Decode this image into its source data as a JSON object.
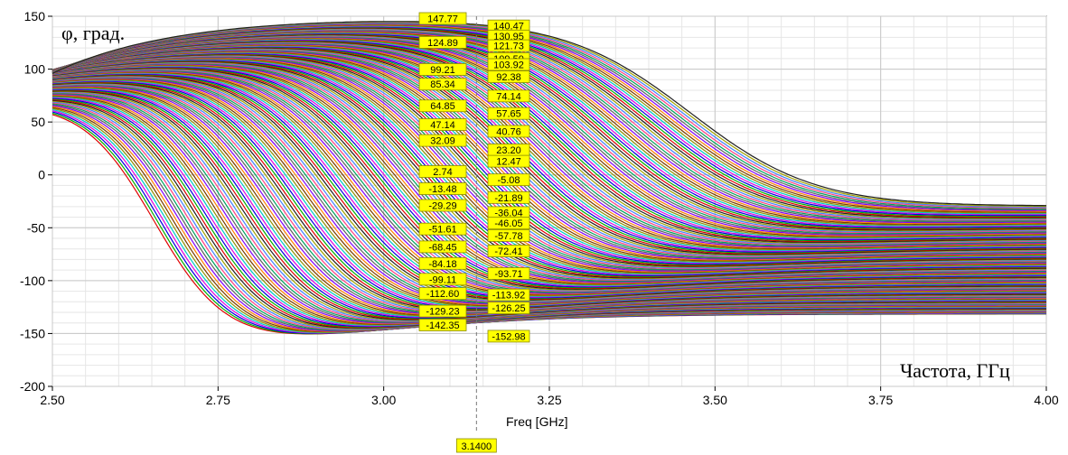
{
  "chart_data": {
    "type": "line",
    "ylabel": "φ, град.",
    "xlabel_top": "Частота, ГГц",
    "xlabel": "Freq [GHz]",
    "xlim": [
      2.5,
      4.0
    ],
    "ylim": [
      -200,
      150
    ],
    "x_ticks": [
      "2.50",
      "2.75",
      "3.00",
      "3.25",
      "3.50",
      "3.75",
      "4.00"
    ],
    "y_ticks": [
      "150",
      "100",
      "50",
      "0",
      "-50",
      "-100",
      "-150",
      "-200"
    ],
    "grid": true,
    "marker_x": "3.1400",
    "series_count": 180,
    "marker_values_left": [
      "147.77",
      "124.89",
      "99.21",
      "85.34",
      "64.85",
      "47.14",
      "32.09",
      "2.74",
      "-13.48",
      "-29.29",
      "-51.61",
      "-68.45",
      "-84.18",
      "-99.11",
      "-112.60",
      "-129.23",
      "-142.35"
    ],
    "marker_values_right": [
      "140.47",
      "130.95",
      "121.73",
      "109.50",
      "103.92",
      "92.38",
      "74.14",
      "57.65",
      "40.76",
      "23.20",
      "12.47",
      "-5.08",
      "-21.89",
      "-36.04",
      "-46.05",
      "-57.78",
      "-72.41",
      "-93.71",
      "-113.92",
      "-126.25",
      "-152.98"
    ]
  }
}
